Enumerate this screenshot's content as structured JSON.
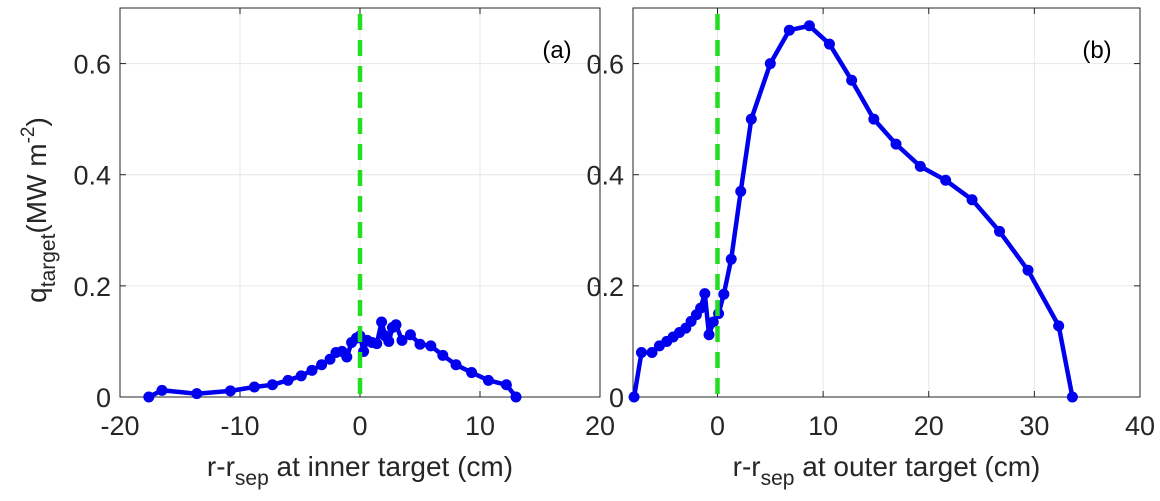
{
  "colors": {
    "series": "#0000ee",
    "separatrix": "#22dd22",
    "grid": "#e6e6e6",
    "axis": "#262626"
  },
  "ylabel": {
    "main": "q",
    "sub": "target",
    "unit_pre": "(MW m",
    "sup": "-2",
    "unit_post": ")"
  },
  "chart_data": [
    {
      "type": "line",
      "panel_label": "(a)",
      "xlabel": {
        "main": "r-r",
        "sub": "sep",
        "rest": " at inner target (cm)"
      },
      "xlim": [
        -20,
        20
      ],
      "ylim": [
        0,
        0.7
      ],
      "xticks": [
        "-20",
        "-10",
        "0",
        "10",
        "20"
      ],
      "yticks": [
        "0",
        "0.2",
        "0.4",
        "0.6"
      ],
      "grid": true,
      "separatrix_x": 0,
      "series": [
        {
          "x": [
            -17.6,
            -16.5,
            -13.6,
            -10.8,
            -8.8,
            -7.3,
            -6.0,
            -4.9,
            -4.0,
            -3.2,
            -2.5,
            -2.0,
            -1.5,
            -1.1,
            -0.7,
            -0.3,
            0.0,
            0.3,
            0.6,
            1.0,
            1.4,
            1.8,
            2.1,
            2.4,
            2.7,
            3.0,
            3.5,
            4.2,
            5.0,
            5.9,
            6.9,
            8.0,
            9.3,
            10.7,
            12.2,
            13.0
          ],
          "y": [
            0.0,
            0.012,
            0.006,
            0.011,
            0.018,
            0.022,
            0.03,
            0.038,
            0.048,
            0.058,
            0.068,
            0.08,
            0.082,
            0.072,
            0.098,
            0.106,
            0.11,
            0.082,
            0.102,
            0.098,
            0.096,
            0.135,
            0.11,
            0.1,
            0.125,
            0.13,
            0.102,
            0.112,
            0.095,
            0.092,
            0.075,
            0.058,
            0.044,
            0.03,
            0.022,
            0.0
          ]
        }
      ]
    },
    {
      "type": "line",
      "panel_label": "(b)",
      "xlabel": {
        "main": "r-r",
        "sub": "sep",
        "rest": " at outer target (cm)"
      },
      "xlim": [
        -8,
        40
      ],
      "ylim": [
        0,
        0.7
      ],
      "xticks": [
        "0",
        "10",
        "20",
        "30",
        "40"
      ],
      "yticks": [
        "0",
        "0.2",
        "0.4",
        "0.6"
      ],
      "grid": true,
      "separatrix_x": 0,
      "series": [
        {
          "x": [
            -7.9,
            -7.2,
            -6.2,
            -5.5,
            -4.8,
            -4.2,
            -3.6,
            -3.0,
            -2.5,
            -2.0,
            -1.6,
            -1.2,
            -0.8,
            -0.4,
            0.1,
            0.6,
            1.3,
            2.2,
            3.2,
            5.0,
            6.8,
            8.7,
            10.6,
            12.7,
            14.8,
            16.9,
            19.2,
            21.6,
            24.1,
            26.7,
            29.4,
            32.3,
            33.6
          ],
          "y": [
            0.0,
            0.08,
            0.08,
            0.092,
            0.1,
            0.108,
            0.116,
            0.124,
            0.136,
            0.148,
            0.16,
            0.186,
            0.112,
            0.135,
            0.15,
            0.185,
            0.248,
            0.37,
            0.5,
            0.6,
            0.66,
            0.668,
            0.635,
            0.57,
            0.5,
            0.455,
            0.415,
            0.39,
            0.355,
            0.298,
            0.228,
            0.128,
            0.0
          ]
        }
      ]
    }
  ]
}
